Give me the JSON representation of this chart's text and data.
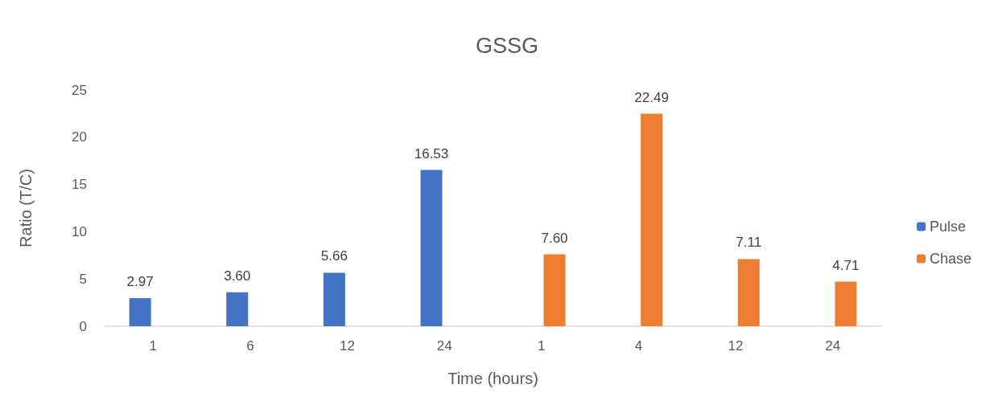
{
  "chart_data": {
    "type": "bar",
    "title": "GSSG",
    "xlabel": "Time (hours)",
    "ylabel": "Ratio (T/C)",
    "categories": [
      "1",
      "6",
      "12",
      "24",
      "1",
      "4",
      "12",
      "24"
    ],
    "series": [
      {
        "name": "Pulse",
        "color": "#4472c4",
        "values": [
          2.97,
          3.6,
          5.66,
          16.53,
          null,
          null,
          null,
          null
        ],
        "value_labels": [
          "2.97",
          "3.60",
          "5.66",
          "16.53",
          null,
          null,
          null,
          null
        ]
      },
      {
        "name": "Chase",
        "color": "#ed7d31",
        "values": [
          null,
          null,
          null,
          null,
          7.6,
          22.49,
          7.11,
          4.71
        ],
        "value_labels": [
          null,
          null,
          null,
          null,
          "7.60",
          "22.49",
          "7.11",
          "4.71"
        ]
      }
    ],
    "ylim": [
      0,
      25
    ],
    "yticks": [
      0,
      5,
      10,
      15,
      20,
      25
    ],
    "legend": "right"
  }
}
